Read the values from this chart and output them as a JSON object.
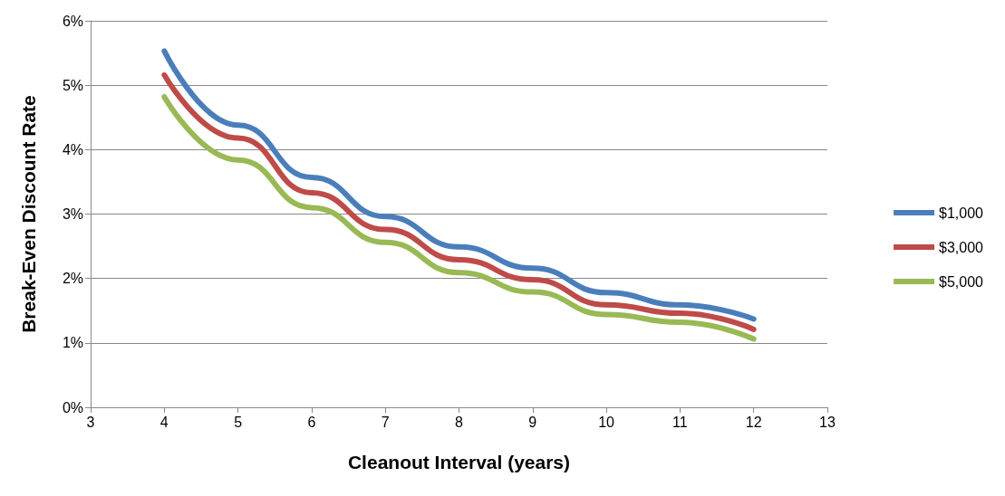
{
  "chart_data": {
    "type": "line",
    "xlabel": "Cleanout Interval (years)",
    "ylabel": "Break-Even Discount Rate",
    "x": [
      4,
      5,
      6,
      7,
      8,
      9,
      10,
      11,
      12
    ],
    "series": [
      {
        "name": "$1,000",
        "color": "#4a7ebb",
        "values": [
          5.53,
          4.38,
          3.57,
          2.96,
          2.49,
          2.16,
          1.78,
          1.59,
          1.37
        ]
      },
      {
        "name": "$3,000",
        "color": "#be4b48",
        "values": [
          5.16,
          4.18,
          3.33,
          2.76,
          2.29,
          1.98,
          1.59,
          1.46,
          1.21
        ]
      },
      {
        "name": "$5,000",
        "color": "#98b954",
        "values": [
          4.82,
          3.84,
          3.1,
          2.56,
          2.09,
          1.79,
          1.44,
          1.32,
          1.06
        ]
      }
    ],
    "xlim": [
      3,
      13
    ],
    "xticks": [
      3,
      4,
      5,
      6,
      7,
      8,
      9,
      10,
      11,
      12,
      13
    ],
    "ylim": [
      0,
      6
    ],
    "yticks": [
      {
        "value": 0,
        "label": "0%"
      },
      {
        "value": 1,
        "label": "1%"
      },
      {
        "value": 2,
        "label": "2%"
      },
      {
        "value": 3,
        "label": "3%"
      },
      {
        "value": 4,
        "label": "4%"
      },
      {
        "value": 5,
        "label": "5%"
      },
      {
        "value": 6,
        "label": "6%"
      }
    ],
    "grid": "y",
    "legend": "right",
    "marker": "none",
    "line_style": "solid"
  }
}
